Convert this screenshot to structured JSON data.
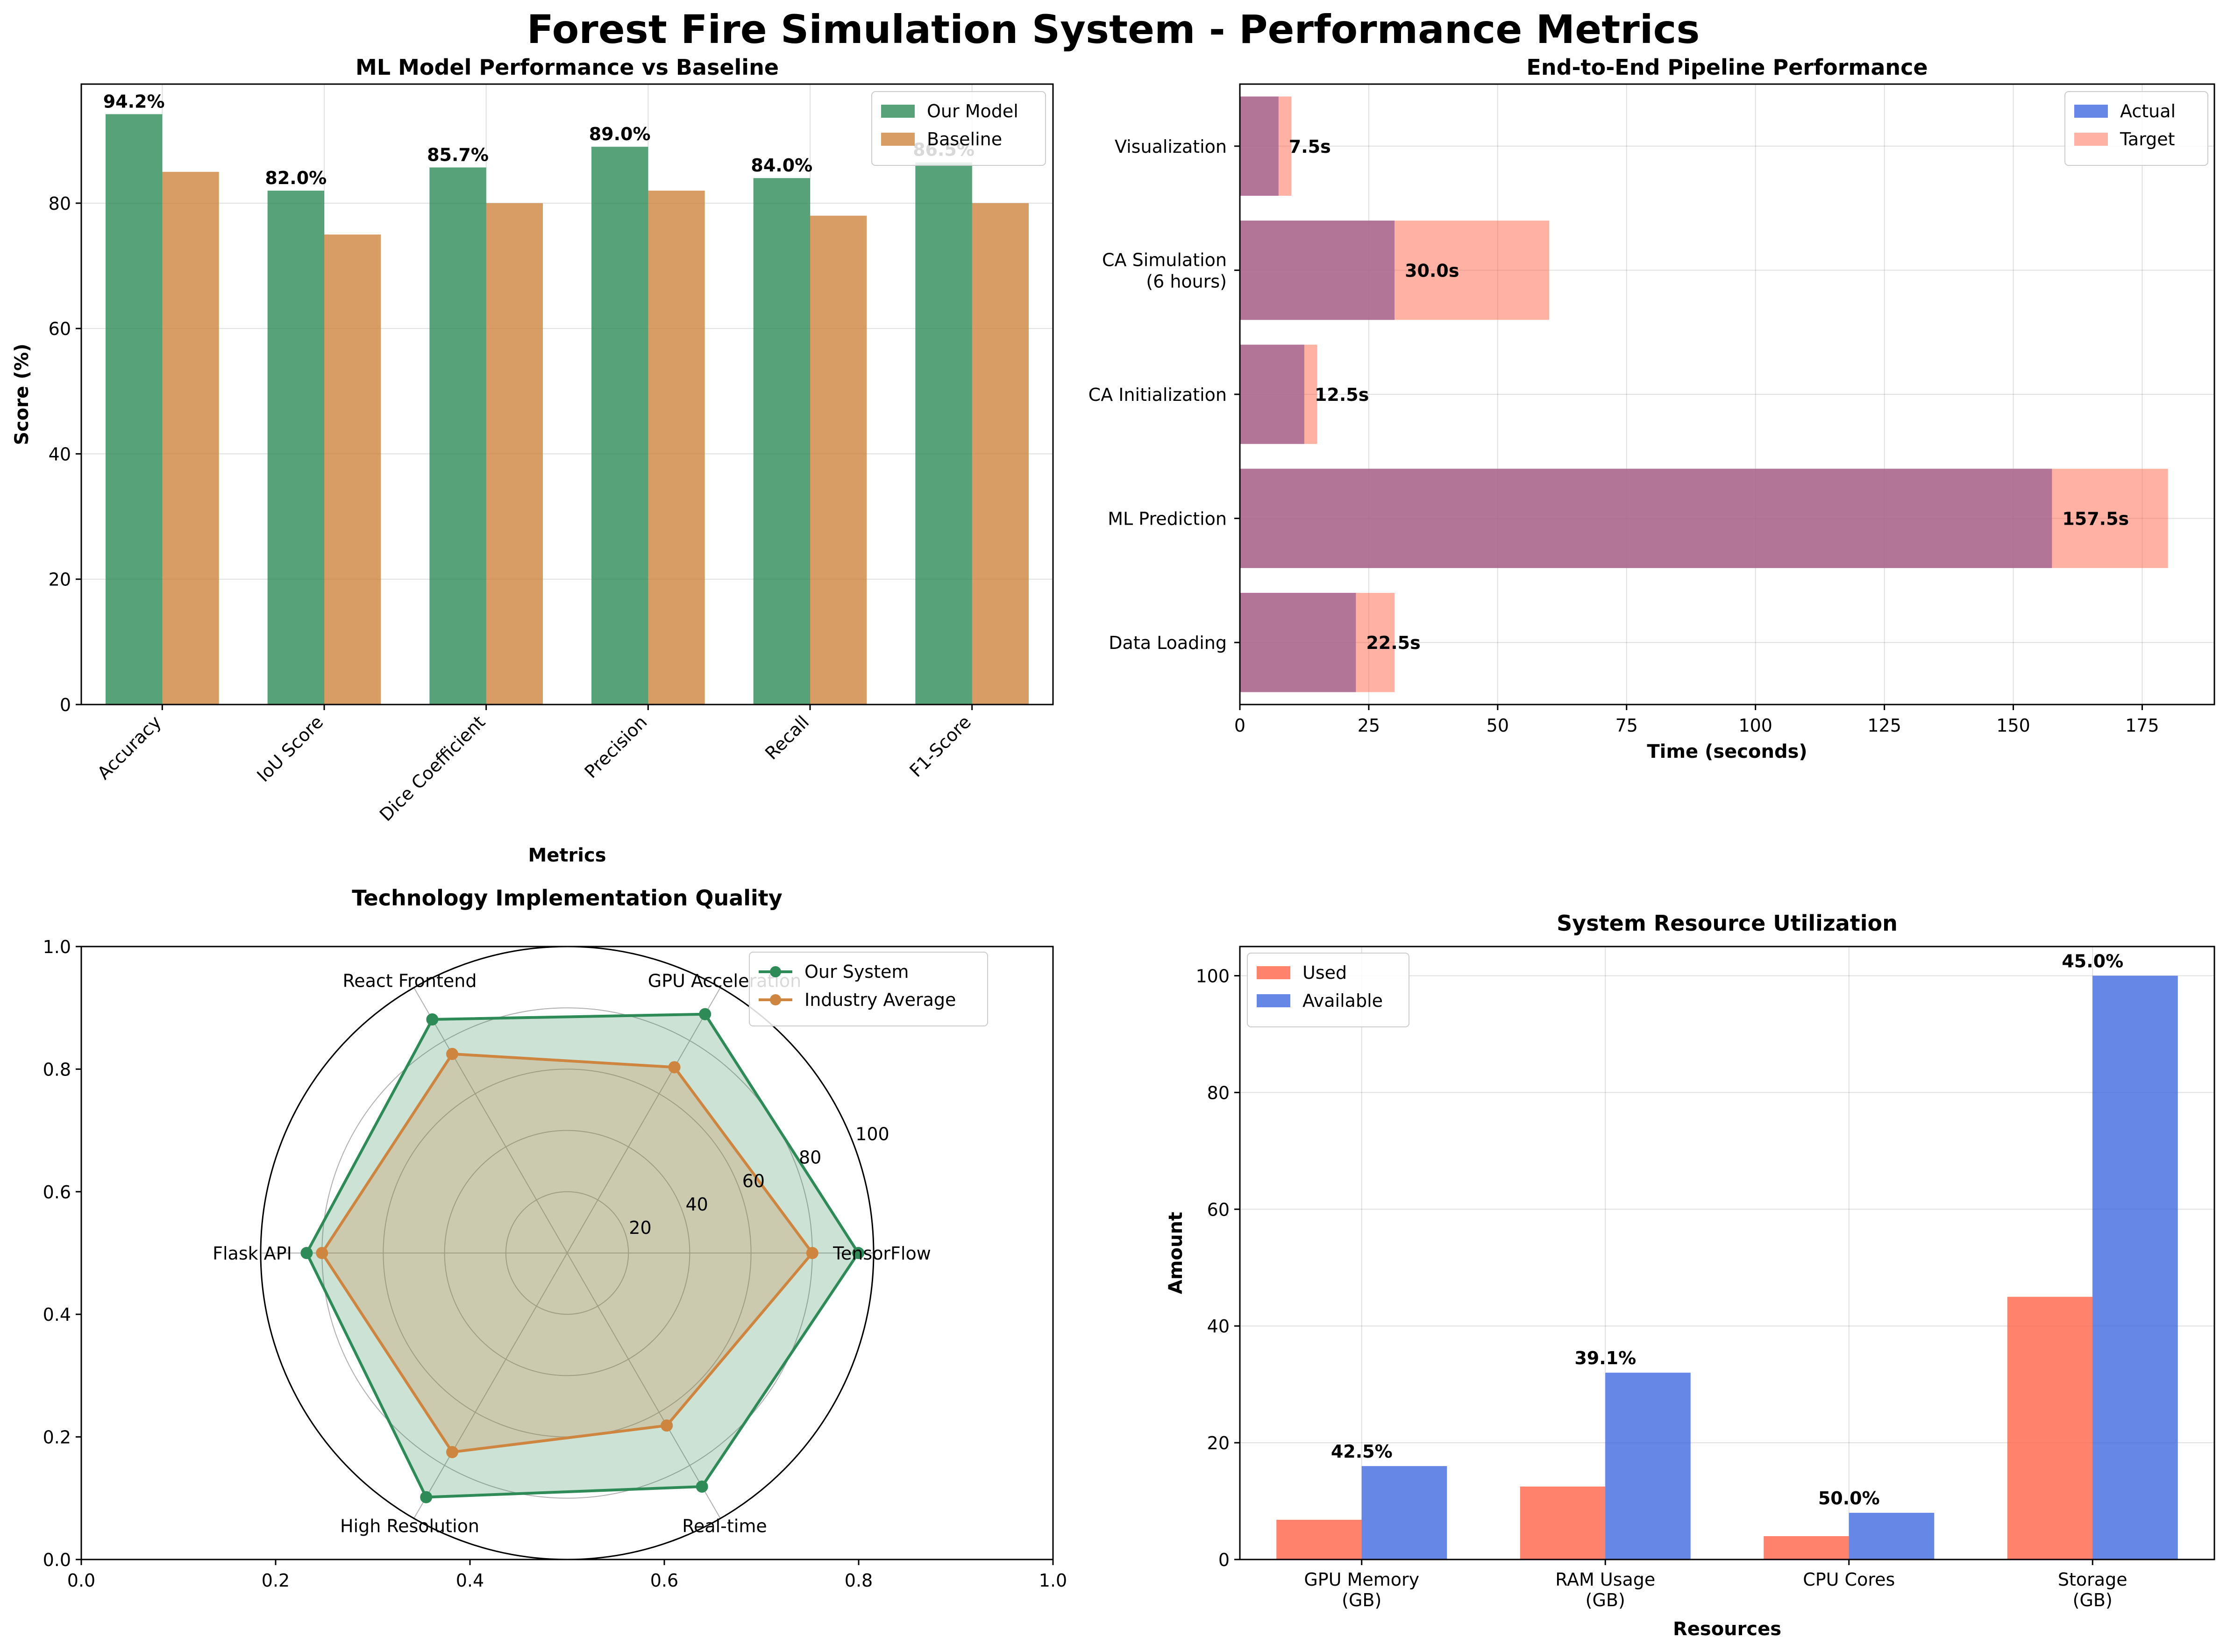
{
  "figure": {
    "title": "Forest Fire Simulation System - Performance Metrics"
  },
  "chart_data": [
    {
      "id": "ml",
      "type": "bar",
      "title": "ML Model Performance vs Baseline",
      "xlabel": "Metrics",
      "ylabel": "Score (%)",
      "categories": [
        "Accuracy",
        "IoU Score",
        "Dice Coefficient",
        "Precision",
        "Recall",
        "F1-Score"
      ],
      "series": [
        {
          "name": "Our Model",
          "values": [
            94.2,
            82.0,
            85.7,
            89.0,
            84.0,
            86.5
          ],
          "color": "#2e8b57",
          "labels": [
            "94.2%",
            "82.0%",
            "85.7%",
            "89.0%",
            "84.0%",
            "86.5%"
          ]
        },
        {
          "name": "Baseline",
          "values": [
            85,
            75,
            80,
            82,
            78,
            80
          ],
          "color": "#cd853f"
        }
      ],
      "ylim": [
        0,
        99
      ],
      "yticks": [
        0,
        20,
        40,
        60,
        80
      ],
      "grid": true,
      "legend": "top-right"
    },
    {
      "id": "pipeline",
      "type": "bar",
      "orientation": "horizontal",
      "title": "End-to-End Pipeline Performance",
      "xlabel": "Time (seconds)",
      "categories": [
        "Data Loading",
        "ML Prediction",
        "CA Initialization",
        "CA Simulation\n(6 hours)",
        "Visualization"
      ],
      "series": [
        {
          "name": "Actual",
          "values": [
            22.5,
            157.5,
            12.5,
            30.0,
            7.5
          ],
          "color": "#4169e1",
          "labels": [
            "22.5s",
            "157.5s",
            "12.5s",
            "30.0s",
            "7.5s"
          ]
        },
        {
          "name": "Target",
          "values": [
            30,
            180,
            15,
            60,
            10
          ],
          "color": "#ff6347"
        }
      ],
      "xlim": [
        0,
        189
      ],
      "xticks": [
        0,
        25,
        50,
        75,
        100,
        125,
        150,
        175
      ],
      "grid": true,
      "legend": "top-right"
    },
    {
      "id": "radar",
      "type": "radar",
      "title": "Technology Implementation Quality",
      "categories": [
        "TensorFlow",
        "GPU Acceleration",
        "React Frontend",
        "Flask API",
        "High Resolution",
        "Real-time"
      ],
      "series": [
        {
          "name": "Our System",
          "values": [
            95,
            90,
            88,
            85,
            92,
            88
          ],
          "color": "#2e8b57"
        },
        {
          "name": "Industry Average",
          "values": [
            80,
            70,
            75,
            80,
            75,
            65
          ],
          "color": "#cd853f"
        }
      ],
      "rlim": [
        0,
        100
      ],
      "rticks": [
        20,
        40,
        60,
        80,
        100
      ],
      "frame_ticks": [
        "0.0",
        "0.2",
        "0.4",
        "0.6",
        "0.8",
        "1.0"
      ],
      "legend": "top-right"
    },
    {
      "id": "resources",
      "type": "bar",
      "title": "System Resource Utilization",
      "xlabel": "Resources",
      "ylabel": "Amount",
      "categories": [
        "GPU Memory\n(GB)",
        "RAM Usage\n(GB)",
        "CPU Cores",
        "Storage\n(GB)"
      ],
      "series": [
        {
          "name": "Used",
          "values": [
            6.8,
            12.5,
            4,
            45
          ],
          "color": "#ff6347"
        },
        {
          "name": "Available",
          "values": [
            16,
            32,
            8,
            100
          ],
          "color": "#4169e1"
        }
      ],
      "percent_labels": [
        "42.5%",
        "39.1%",
        "50.0%",
        "45.0%"
      ],
      "ylim": [
        0,
        105
      ],
      "yticks": [
        0,
        20,
        40,
        60,
        80,
        100
      ],
      "grid": true,
      "legend": "top-left"
    }
  ]
}
